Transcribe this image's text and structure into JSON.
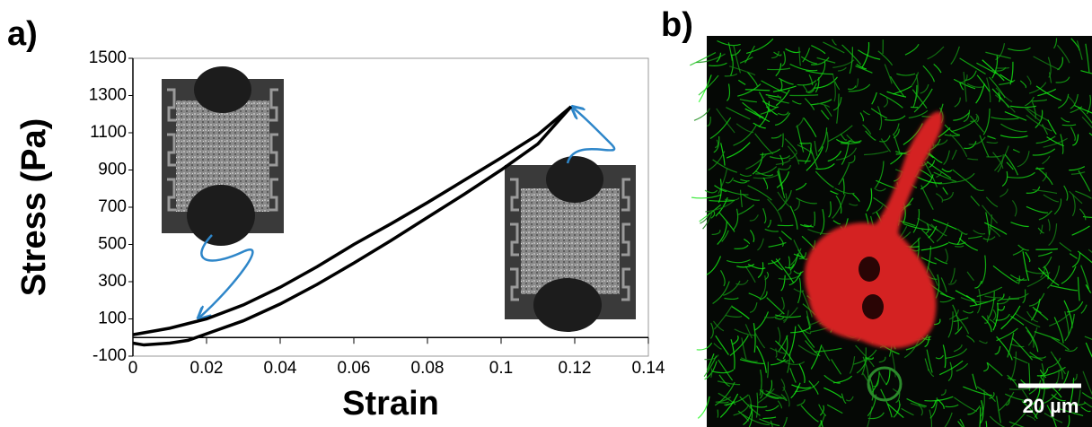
{
  "panel_a_label": "a)",
  "panel_b_label": "b)",
  "scale_bar_label": "20 µm",
  "chart_data": {
    "type": "line",
    "x_label": "Strain",
    "y_label": "Stress (Pa)",
    "xlim": [
      0,
      0.14
    ],
    "xticks": [
      0,
      0.02,
      0.04,
      0.06,
      0.08,
      0.1,
      0.12,
      0.14
    ],
    "ylim": [
      -100,
      1500
    ],
    "yticks": [
      -100,
      100,
      300,
      500,
      700,
      900,
      1100,
      1300,
      1500
    ],
    "series": [
      {
        "color": "#000000",
        "x": [
          0,
          0.01,
          0.02,
          0.03,
          0.04,
          0.05,
          0.06,
          0.07,
          0.08,
          0.09,
          0.1,
          0.11,
          0.119
        ],
        "values": [
          15,
          50,
          100,
          175,
          270,
          380,
          500,
          610,
          725,
          845,
          965,
          1090,
          1240
        ]
      },
      {
        "color": "#000000",
        "x": [
          0,
          0.003,
          0.01,
          0.015,
          0.02,
          0.03,
          0.04,
          0.05,
          0.06,
          0.07,
          0.08,
          0.09,
          0.1,
          0.11,
          0.119
        ],
        "values": [
          -30,
          -40,
          -30,
          -15,
          20,
          90,
          180,
          285,
          400,
          520,
          645,
          770,
          900,
          1040,
          1240
        ]
      }
    ]
  }
}
